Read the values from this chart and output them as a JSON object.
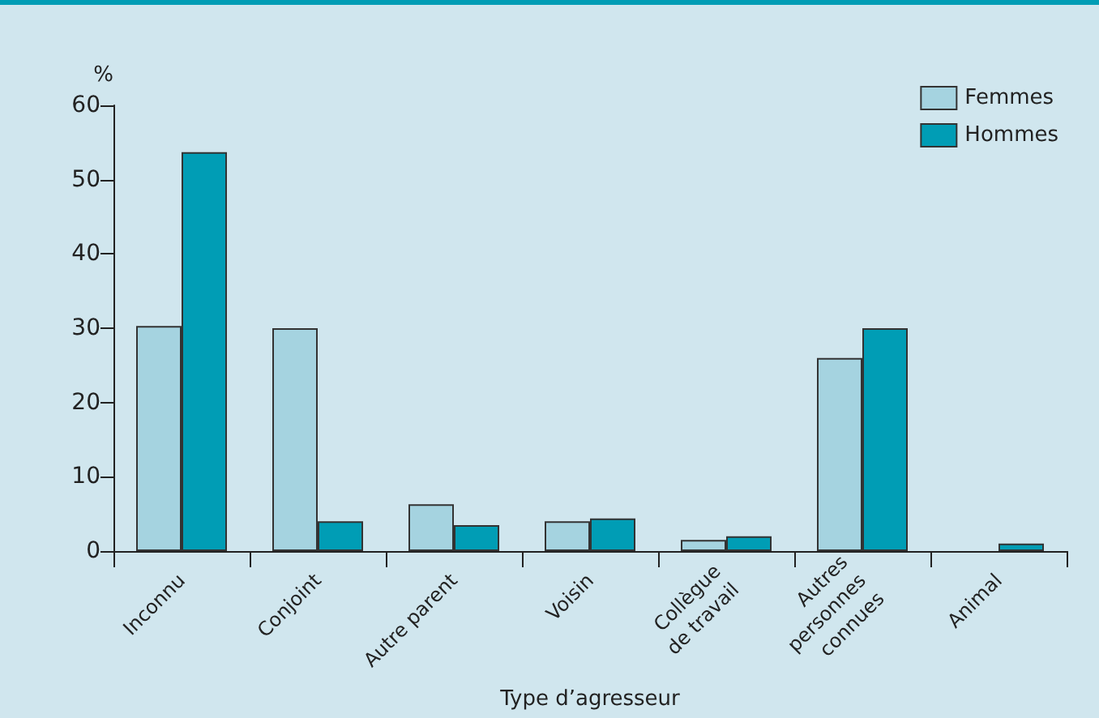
{
  "chart_data": {
    "type": "bar",
    "xlabel": "Type d’agresseur",
    "ylabel": "%",
    "categories": [
      "Inconnu",
      "Conjoint",
      "Autre parent",
      "Voisin",
      "Collègue\nde travail",
      "Autres\npersonnes\nconnues",
      "Animal"
    ],
    "series": [
      {
        "name": "Femmes",
        "color": "#a5d3e0",
        "values": [
          30.3,
          30,
          6.3,
          4,
          1.5,
          26,
          null
        ]
      },
      {
        "name": "Hommes",
        "color": "#009db5",
        "values": [
          53.7,
          4,
          3.5,
          4.4,
          2,
          30,
          1
        ]
      }
    ],
    "ylim": [
      0,
      60
    ],
    "yticks": [
      0,
      10,
      20,
      30,
      40,
      50,
      60
    ],
    "grid": false,
    "legend": "top right"
  }
}
